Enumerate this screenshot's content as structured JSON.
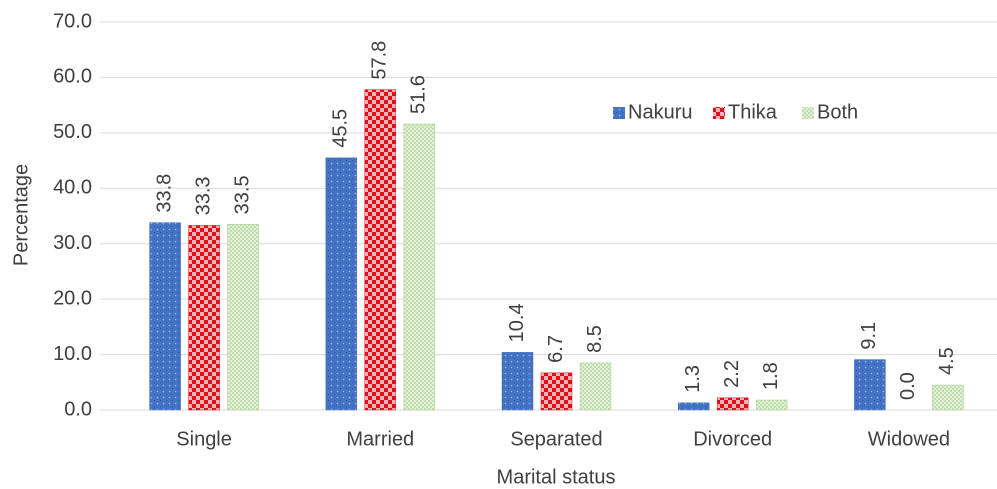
{
  "chart_data": {
    "type": "bar",
    "categories": [
      "Single",
      "Married",
      "Separated",
      "Divorced",
      "Widowed"
    ],
    "series": [
      {
        "name": "Nakuru",
        "color": "#4472c4",
        "values": [
          33.8,
          45.5,
          10.4,
          1.3,
          9.1
        ],
        "value_labels": [
          "33.8",
          "45.5",
          "10.4",
          "1.3",
          "9.1"
        ]
      },
      {
        "name": "Thika",
        "color": "#e0111b",
        "values": [
          33.3,
          57.8,
          6.7,
          2.2,
          0
        ],
        "value_labels": [
          "33.3",
          "57.8",
          "6.7",
          "2.2",
          "0.0"
        ]
      },
      {
        "name": "Both",
        "color": "#a9d18e",
        "values": [
          33.5,
          51.6,
          8.5,
          1.8,
          4.5
        ],
        "value_labels": [
          "33.5",
          "51.6",
          "8.5",
          "1.8",
          "4.5"
        ]
      }
    ],
    "xlabel": "Marital status",
    "ylabel": "Percentage",
    "ylim": [
      0,
      70
    ],
    "yticks": [
      {
        "value": 0,
        "label": "0.0"
      },
      {
        "value": 10,
        "label": "10.0"
      },
      {
        "value": 20,
        "label": "20.0"
      },
      {
        "value": 30,
        "label": "30.0"
      },
      {
        "value": 40,
        "label": "40.0"
      },
      {
        "value": 50,
        "label": "50.0"
      },
      {
        "value": 60,
        "label": "60.0"
      },
      {
        "value": 70,
        "label": "70.0"
      }
    ],
    "grid": true,
    "legend": "upper right"
  }
}
